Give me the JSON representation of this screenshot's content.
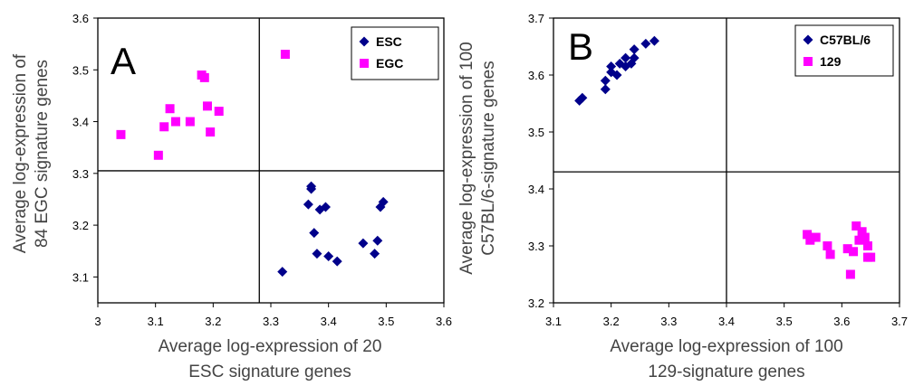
{
  "chart_data": [
    {
      "type": "scatter",
      "panel": "A",
      "xlabel": [
        "Average log-expression of 20",
        "ESC signature genes"
      ],
      "ylabel": [
        "Average log-expression of",
        "84 EGC signature genes"
      ],
      "xlim": [
        3.0,
        3.6
      ],
      "ylim": [
        3.05,
        3.6
      ],
      "xticks": [
        "3",
        "3.1",
        "3.2",
        "3.3",
        "3.4",
        "3.5",
        "3.6"
      ],
      "yticks": [
        "3.1",
        "3.2",
        "3.3",
        "3.4",
        "3.5",
        "3.6"
      ],
      "divider_x": 3.28,
      "divider_y": 3.305,
      "legend_position": "top-right",
      "series": [
        {
          "name": "ESC",
          "marker": "diamond",
          "color": "#00008b",
          "points": [
            [
              3.32,
              3.11
            ],
            [
              3.365,
              3.24
            ],
            [
              3.37,
              3.27
            ],
            [
              3.37,
              3.275
            ],
            [
              3.375,
              3.185
            ],
            [
              3.38,
              3.145
            ],
            [
              3.385,
              3.23
            ],
            [
              3.395,
              3.235
            ],
            [
              3.4,
              3.14
            ],
            [
              3.415,
              3.13
            ],
            [
              3.46,
              3.165
            ],
            [
              3.48,
              3.145
            ],
            [
              3.485,
              3.17
            ],
            [
              3.49,
              3.235
            ],
            [
              3.495,
              3.245
            ]
          ]
        },
        {
          "name": "EGC",
          "marker": "square",
          "color": "#ff00ff",
          "points": [
            [
              3.04,
              3.375
            ],
            [
              3.105,
              3.335
            ],
            [
              3.115,
              3.39
            ],
            [
              3.125,
              3.425
            ],
            [
              3.135,
              3.4
            ],
            [
              3.16,
              3.4
            ],
            [
              3.18,
              3.49
            ],
            [
              3.185,
              3.485
            ],
            [
              3.19,
              3.43
            ],
            [
              3.195,
              3.38
            ],
            [
              3.21,
              3.42
            ],
            [
              3.325,
              3.53
            ]
          ]
        }
      ]
    },
    {
      "type": "scatter",
      "panel": "B",
      "xlabel": [
        "Average log-expression of 100",
        "129-signature genes"
      ],
      "ylabel": [
        "Average log-expression of 100",
        "C57BL/6-signature genes"
      ],
      "xlim": [
        3.1,
        3.7
      ],
      "ylim": [
        3.2,
        3.7
      ],
      "xticks": [
        "3.1",
        "3.2",
        "3.3",
        "3.4",
        "3.5",
        "3.6",
        "3.7"
      ],
      "yticks": [
        "3.2",
        "3.3",
        "3.4",
        "3.5",
        "3.6",
        "3.7"
      ],
      "divider_x": 3.4,
      "divider_y": 3.43,
      "legend_position": "top-right",
      "series": [
        {
          "name": "C57BL/6",
          "marker": "diamond",
          "color": "#00008b",
          "points": [
            [
              3.145,
              3.555
            ],
            [
              3.15,
              3.56
            ],
            [
              3.19,
              3.575
            ],
            [
              3.19,
              3.59
            ],
            [
              3.2,
              3.605
            ],
            [
              3.2,
              3.615
            ],
            [
              3.21,
              3.6
            ],
            [
              3.215,
              3.62
            ],
            [
              3.225,
              3.615
            ],
            [
              3.225,
              3.63
            ],
            [
              3.235,
              3.62
            ],
            [
              3.24,
              3.63
            ],
            [
              3.24,
              3.645
            ],
            [
              3.26,
              3.655
            ],
            [
              3.275,
              3.66
            ]
          ]
        },
        {
          "name": "129",
          "marker": "square",
          "color": "#ff00ff",
          "points": [
            [
              3.54,
              3.32
            ],
            [
              3.545,
              3.31
            ],
            [
              3.555,
              3.315
            ],
            [
              3.575,
              3.3
            ],
            [
              3.58,
              3.285
            ],
            [
              3.61,
              3.295
            ],
            [
              3.615,
              3.25
            ],
            [
              3.62,
              3.29
            ],
            [
              3.625,
              3.335
            ],
            [
              3.63,
              3.31
            ],
            [
              3.635,
              3.325
            ],
            [
              3.64,
              3.315
            ],
            [
              3.645,
              3.3
            ],
            [
              3.645,
              3.28
            ],
            [
              3.65,
              3.28
            ]
          ]
        }
      ]
    }
  ]
}
